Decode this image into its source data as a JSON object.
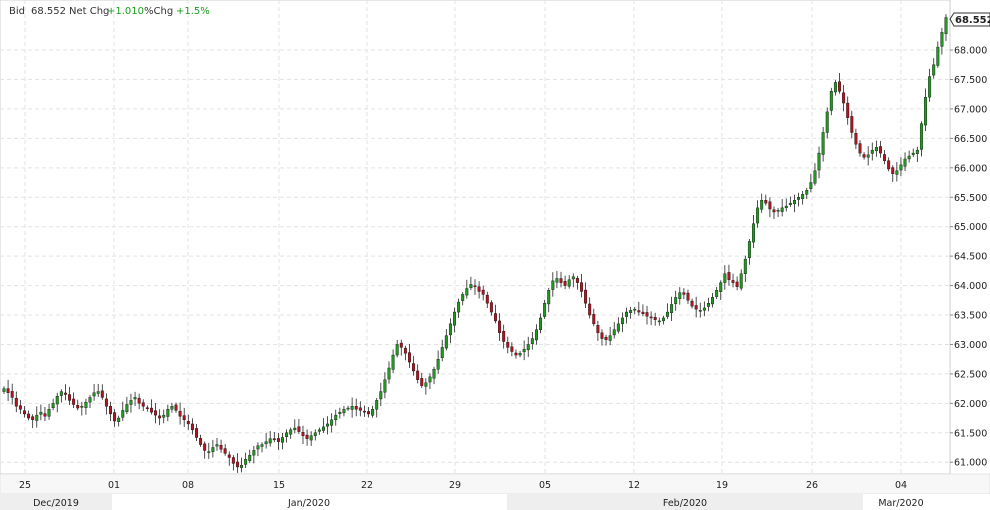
{
  "header": {
    "bid_label": "Bid",
    "bid_value": "68.552",
    "netchg_label": "Net Chg",
    "netchg_value": "+1.010",
    "pctchg_label": "%Chg",
    "pctchg_value": "+1.5%"
  },
  "colors": {
    "up": "#1f9a1f",
    "down": "#b3121f",
    "wick": "#222222",
    "grid": "#e3e3e3",
    "positive_text": "#1a9c1a",
    "axis_band": "#eeeeee"
  },
  "chart_data": {
    "type": "candlestick",
    "ylim": [
      60.8,
      68.85
    ],
    "y_ticks": [
      "61.000",
      "61.500",
      "62.000",
      "62.500",
      "63.000",
      "63.500",
      "64.000",
      "64.500",
      "65.000",
      "65.500",
      "66.000",
      "66.500",
      "67.000",
      "67.500",
      "68.000"
    ],
    "x_ticks": [
      "25",
      "01",
      "08",
      "15",
      "22",
      "29",
      "05",
      "12",
      "19",
      "26",
      "04"
    ],
    "months": [
      "Dec/2019",
      "Jan/2020",
      "Feb/2020",
      "Mar/2020"
    ],
    "last_value": "68.552",
    "grid": true,
    "close_series": [
      62.25,
      62.18,
      62.1,
      61.95,
      61.9,
      61.82,
      61.75,
      61.72,
      61.8,
      61.85,
      61.78,
      61.9,
      62.0,
      62.12,
      62.2,
      62.15,
      62.05,
      61.98,
      61.92,
      61.95,
      62.02,
      62.1,
      62.18,
      62.2,
      62.1,
      61.95,
      61.82,
      61.7,
      61.75,
      61.88,
      61.98,
      62.05,
      62.1,
      62.0,
      61.95,
      61.92,
      61.85,
      61.8,
      61.75,
      61.8,
      61.9,
      61.95,
      61.88,
      61.78,
      61.72,
      61.65,
      61.55,
      61.42,
      61.3,
      61.2,
      61.18,
      61.25,
      61.3,
      61.22,
      61.15,
      61.08,
      60.98,
      60.92,
      60.95,
      61.05,
      61.12,
      61.2,
      61.28,
      61.3,
      61.35,
      61.4,
      61.38,
      61.35,
      61.42,
      61.5,
      61.55,
      61.58,
      61.52,
      61.45,
      61.4,
      61.45,
      61.5,
      61.55,
      61.6,
      61.65,
      61.72,
      61.8,
      61.85,
      61.9,
      61.92,
      61.95,
      61.9,
      61.88,
      61.85,
      61.82,
      61.9,
      62.05,
      62.2,
      62.4,
      62.6,
      62.82,
      63.0,
      62.95,
      62.85,
      62.7,
      62.55,
      62.4,
      62.3,
      62.35,
      62.45,
      62.58,
      62.75,
      62.95,
      63.15,
      63.35,
      63.55,
      63.72,
      63.85,
      63.95,
      64.02,
      63.98,
      63.9,
      63.85,
      63.7,
      63.55,
      63.4,
      63.2,
      63.05,
      62.95,
      62.88,
      62.82,
      62.85,
      62.92,
      63.0,
      63.1,
      63.25,
      63.45,
      63.7,
      63.92,
      64.08,
      64.12,
      64.05,
      64.0,
      64.1,
      64.15,
      64.05,
      63.9,
      63.7,
      63.5,
      63.35,
      63.2,
      63.1,
      63.08,
      63.15,
      63.25,
      63.35,
      63.45,
      63.55,
      63.58,
      63.6,
      63.55,
      63.52,
      63.48,
      63.45,
      63.42,
      63.4,
      63.45,
      63.55,
      63.68,
      63.8,
      63.88,
      63.85,
      63.75,
      63.65,
      63.6,
      63.58,
      63.62,
      63.7,
      63.8,
      63.92,
      64.05,
      64.2,
      64.1,
      64.05,
      63.98,
      64.2,
      64.45,
      64.75,
      65.05,
      65.32,
      65.45,
      65.4,
      65.3,
      65.25,
      65.28,
      65.32,
      65.35,
      65.4,
      65.45,
      65.5,
      65.55,
      65.62,
      65.75,
      65.95,
      66.25,
      66.6,
      66.95,
      67.3,
      67.45,
      67.3,
      67.1,
      66.85,
      66.6,
      66.4,
      66.25,
      66.18,
      66.22,
      66.3,
      66.35,
      66.25,
      66.12,
      65.98,
      65.9,
      65.95,
      66.05,
      66.15,
      66.2,
      66.25,
      66.3,
      66.75,
      67.2,
      67.55,
      67.75,
      68.05,
      68.3,
      68.552
    ]
  }
}
